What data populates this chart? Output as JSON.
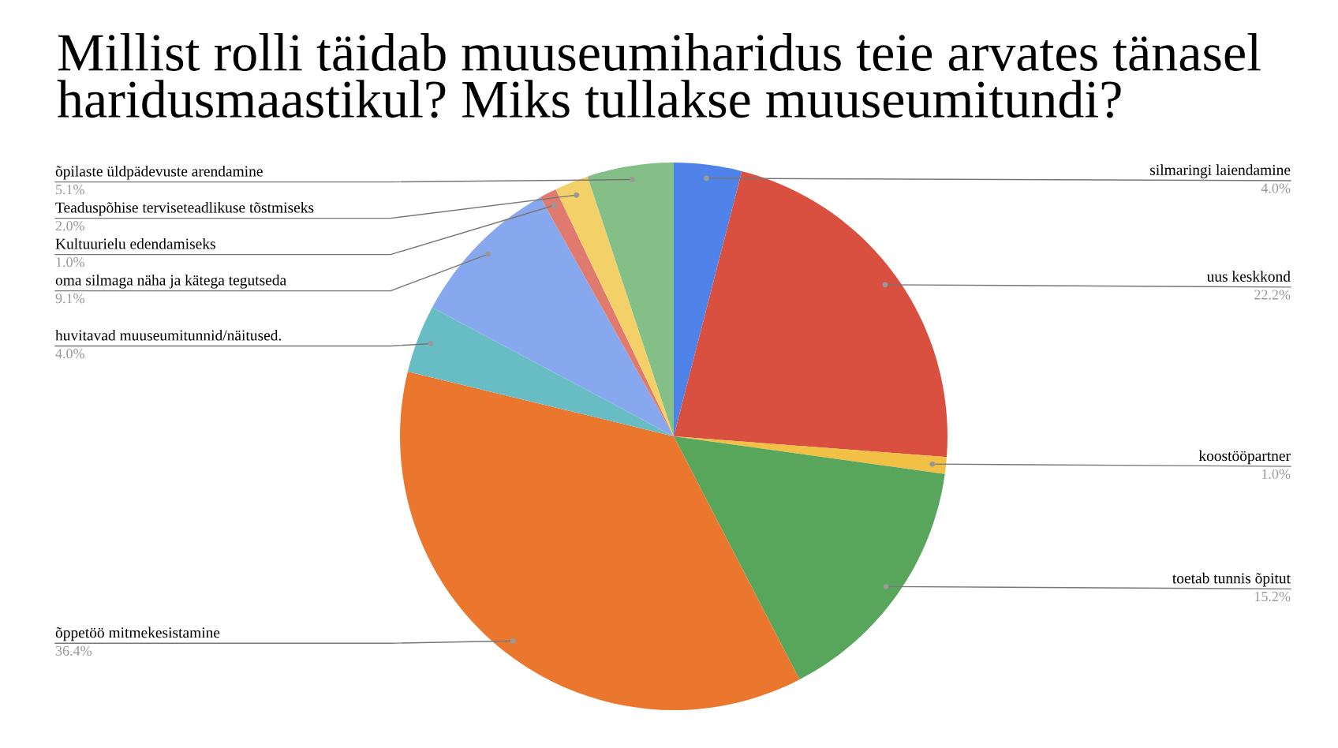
{
  "chart_data": {
    "type": "pie",
    "title": "Millist rolli täidab muuseumiharidus teie arvates tänasel haridusmaastikul? Miks tullakse muuseumitundi?",
    "categories": [
      "silmaringi laiendamine",
      "uus keskkond",
      "koostööpartner",
      "toetab tunnis õpitut",
      "õppetöö mitmekesistamine",
      "huvitavad muuseumitunnid/näitused.",
      "oma silmaga näha ja kätega tegutseda",
      "Kultuurielu edendamiseks",
      "Teaduspõhise terviseteadlikuse tõstmiseks",
      "õpilaste üldpädevuste arendamine"
    ],
    "values": [
      4.0,
      22.2,
      1.0,
      15.2,
      36.4,
      4.0,
      9.1,
      1.0,
      2.0,
      5.1
    ],
    "value_labels": [
      "4.0%",
      "22.2%",
      "1.0%",
      "15.2%",
      "36.4%",
      "4.0%",
      "9.1%",
      "1.0%",
      "2.0%",
      "5.1%"
    ],
    "colors": [
      "#5083ea",
      "#d95040",
      "#f2c045",
      "#58a65c",
      "#eb762e",
      "#68bcc3",
      "#87a8ee",
      "#e07a6e",
      "#f4d168",
      "#83bf87"
    ],
    "legend": false
  }
}
